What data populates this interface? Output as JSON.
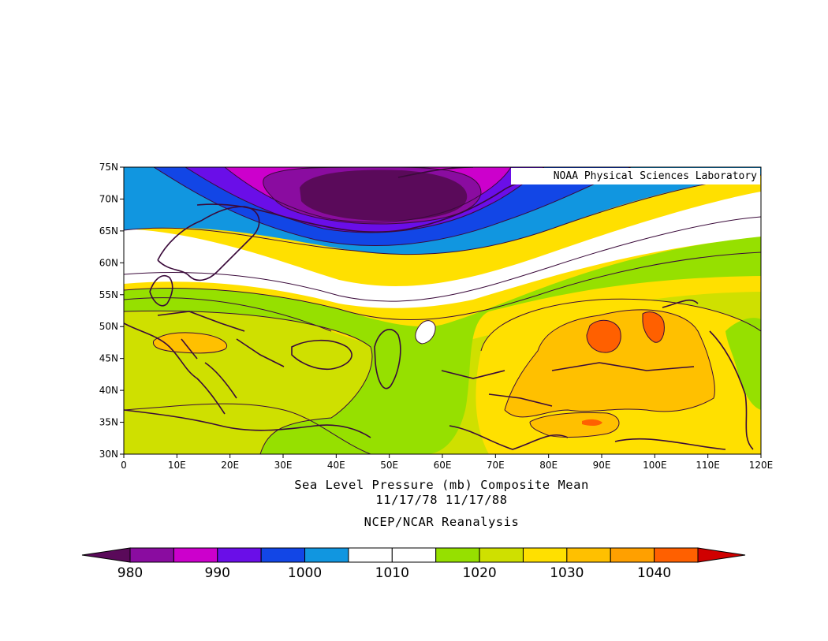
{
  "credit": "NOAA Physical Sciences Laboratory",
  "titles": {
    "line1": "Sea Level Pressure (mb) Composite Mean",
    "line2": "11/17/78 11/17/88",
    "line3": "NCEP/NCAR Reanalysis"
  },
  "axes": {
    "lat_ticks": [
      "75N",
      "70N",
      "65N",
      "60N",
      "55N",
      "50N",
      "45N",
      "40N",
      "35N",
      "30N"
    ],
    "lon_ticks": [
      "0",
      "10E",
      "20E",
      "30E",
      "40E",
      "50E",
      "60E",
      "70E",
      "80E",
      "90E",
      "100E",
      "110E",
      "120E"
    ]
  },
  "colorbar": {
    "labels": [
      "980",
      "990",
      "1000",
      "1010",
      "1020",
      "1030",
      "1040"
    ],
    "colors": [
      "#8a0ca0",
      "#cc00cc",
      "#6a0ee8",
      "#1246e6",
      "#1196e0",
      "#ffffff",
      "#ffffff",
      "#96e000",
      "#cfe000",
      "#ffe000",
      "#ffc000",
      "#ffa000",
      "#ff6000"
    ],
    "low_arrow_color": "#5a0a5a",
    "high_arrow_color": "#d00000"
  },
  "colors": {
    "contour_line": "#3a0a3a",
    "coastline": "#3a0a3a"
  }
}
